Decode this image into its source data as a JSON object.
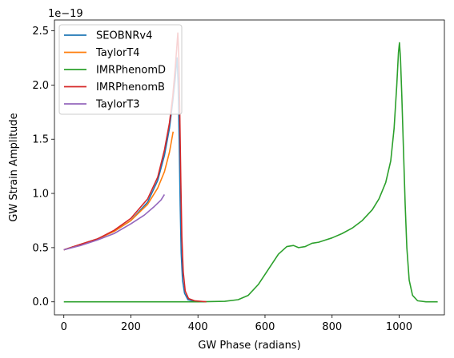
{
  "chart_data": {
    "type": "line",
    "xlabel": "GW Phase (radians)",
    "ylabel": "GW Strain Amplitude",
    "y_scale_label": "1e−19",
    "xlim": [
      -28,
      1135
    ],
    "ylim": [
      -0.12,
      2.6
    ],
    "x_ticks": [
      0,
      200,
      400,
      600,
      800,
      1000
    ],
    "x_tick_labels": [
      "0",
      "200",
      "400",
      "600",
      "800",
      "1000"
    ],
    "y_ticks": [
      0.0,
      0.5,
      1.0,
      1.5,
      2.0,
      2.5
    ],
    "y_tick_labels": [
      "0.0",
      "0.5",
      "1.0",
      "1.5",
      "2.0",
      "2.5"
    ],
    "grid": false,
    "legend_position": "upper-left",
    "series": [
      {
        "name": "SEOBNRv4",
        "color": "#1f77b4",
        "points": [
          [
            0,
            0.48
          ],
          [
            50,
            0.53
          ],
          [
            100,
            0.58
          ],
          [
            150,
            0.65
          ],
          [
            200,
            0.75
          ],
          [
            250,
            0.92
          ],
          [
            280,
            1.12
          ],
          [
            300,
            1.35
          ],
          [
            315,
            1.6
          ],
          [
            325,
            1.85
          ],
          [
            332,
            2.05
          ],
          [
            336,
            2.2
          ],
          [
            338,
            2.25
          ],
          [
            341,
            2.0
          ],
          [
            344,
            1.5
          ],
          [
            347,
            0.9
          ],
          [
            350,
            0.45
          ],
          [
            354,
            0.2
          ],
          [
            360,
            0.08
          ],
          [
            370,
            0.02
          ],
          [
            390,
            0.005
          ],
          [
            420,
            0.0
          ]
        ]
      },
      {
        "name": "TaylorT4",
        "color": "#ff7f0e",
        "points": [
          [
            0,
            0.48
          ],
          [
            50,
            0.53
          ],
          [
            100,
            0.58
          ],
          [
            150,
            0.65
          ],
          [
            200,
            0.75
          ],
          [
            250,
            0.9
          ],
          [
            280,
            1.05
          ],
          [
            300,
            1.2
          ],
          [
            315,
            1.38
          ],
          [
            322,
            1.5
          ],
          [
            326,
            1.57
          ]
        ]
      },
      {
        "name": "IMRPhenomD",
        "color": "#2ca02c",
        "points": [
          [
            0,
            0.0
          ],
          [
            200,
            0.0
          ],
          [
            400,
            0.0
          ],
          [
            480,
            0.005
          ],
          [
            520,
            0.02
          ],
          [
            550,
            0.06
          ],
          [
            580,
            0.16
          ],
          [
            610,
            0.3
          ],
          [
            640,
            0.44
          ],
          [
            665,
            0.51
          ],
          [
            685,
            0.52
          ],
          [
            700,
            0.5
          ],
          [
            720,
            0.51
          ],
          [
            740,
            0.54
          ],
          [
            760,
            0.55
          ],
          [
            780,
            0.57
          ],
          [
            800,
            0.59
          ],
          [
            830,
            0.63
          ],
          [
            860,
            0.68
          ],
          [
            890,
            0.75
          ],
          [
            920,
            0.85
          ],
          [
            940,
            0.95
          ],
          [
            960,
            1.1
          ],
          [
            975,
            1.3
          ],
          [
            985,
            1.6
          ],
          [
            993,
            2.0
          ],
          [
            998,
            2.3
          ],
          [
            1001,
            2.39
          ],
          [
            1004,
            2.25
          ],
          [
            1008,
            1.9
          ],
          [
            1013,
            1.4
          ],
          [
            1018,
            0.9
          ],
          [
            1023,
            0.5
          ],
          [
            1030,
            0.2
          ],
          [
            1040,
            0.06
          ],
          [
            1055,
            0.01
          ],
          [
            1080,
            0.0
          ],
          [
            1115,
            0.0
          ]
        ]
      },
      {
        "name": "IMRPhenomB",
        "color": "#d62728",
        "points": [
          [
            0,
            0.48
          ],
          [
            50,
            0.53
          ],
          [
            100,
            0.58
          ],
          [
            150,
            0.66
          ],
          [
            200,
            0.77
          ],
          [
            250,
            0.95
          ],
          [
            280,
            1.15
          ],
          [
            300,
            1.4
          ],
          [
            315,
            1.65
          ],
          [
            325,
            1.9
          ],
          [
            332,
            2.15
          ],
          [
            337,
            2.35
          ],
          [
            340,
            2.48
          ],
          [
            343,
            2.25
          ],
          [
            346,
            1.7
          ],
          [
            349,
            1.1
          ],
          [
            352,
            0.6
          ],
          [
            356,
            0.28
          ],
          [
            362,
            0.1
          ],
          [
            372,
            0.03
          ],
          [
            390,
            0.01
          ],
          [
            425,
            0.0
          ]
        ]
      },
      {
        "name": "TaylorT3",
        "color": "#9467bd",
        "points": [
          [
            0,
            0.48
          ],
          [
            50,
            0.52
          ],
          [
            100,
            0.57
          ],
          [
            150,
            0.63
          ],
          [
            200,
            0.72
          ],
          [
            240,
            0.8
          ],
          [
            270,
            0.88
          ],
          [
            290,
            0.94
          ],
          [
            300,
            0.99
          ]
        ]
      }
    ]
  }
}
